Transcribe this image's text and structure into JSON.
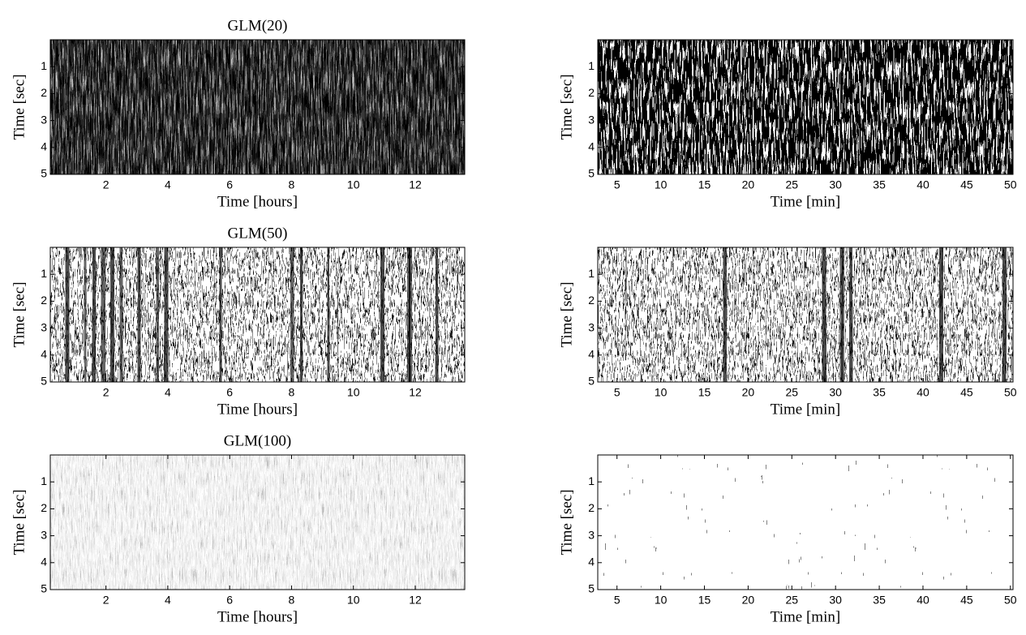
{
  "chart_data": [
    {
      "type": "raster",
      "title": "GLM(20)",
      "xlabel": "Time [hours]",
      "ylabel": "Time [sec]",
      "xlim": [
        0.2,
        13.6
      ],
      "xticks": [
        2,
        4,
        6,
        8,
        10,
        12
      ],
      "ylim": [
        0,
        5
      ],
      "yticks": [
        1,
        2,
        3,
        4,
        5
      ],
      "y_reversed": true
    },
    {
      "type": "raster",
      "xlabel": "Time [min]",
      "ylabel": "Time [sec]",
      "xlim": [
        2.8,
        50.3
      ],
      "xticks": [
        5,
        10,
        15,
        20,
        25,
        30,
        35,
        40,
        45,
        50
      ],
      "ylim": [
        0,
        5
      ],
      "yticks": [
        1,
        2,
        3,
        4,
        5
      ],
      "y_reversed": true
    },
    {
      "type": "raster",
      "title": "GLM(50)",
      "xlabel": "Time [hours]",
      "ylabel": "Time [sec]",
      "xlim": [
        0.2,
        13.6
      ],
      "xticks": [
        2,
        4,
        6,
        8,
        10,
        12
      ],
      "ylim": [
        0,
        5
      ],
      "yticks": [
        1,
        2,
        3,
        4,
        5
      ],
      "y_reversed": true
    },
    {
      "type": "raster",
      "xlabel": "Time [min]",
      "ylabel": "Time [sec]",
      "xlim": [
        2.8,
        50.3
      ],
      "xticks": [
        5,
        10,
        15,
        20,
        25,
        30,
        35,
        40,
        45,
        50
      ],
      "ylim": [
        0,
        5
      ],
      "yticks": [
        1,
        2,
        3,
        4,
        5
      ],
      "y_reversed": true
    },
    {
      "type": "raster",
      "title": "GLM(100)",
      "xlabel": "Time [hours]",
      "ylabel": "Time [sec]",
      "xlim": [
        0.2,
        13.6
      ],
      "xticks": [
        2,
        4,
        6,
        8,
        10,
        12
      ],
      "ylim": [
        0,
        5
      ],
      "yticks": [
        1,
        2,
        3,
        4,
        5
      ],
      "y_reversed": true
    },
    {
      "type": "raster",
      "xlabel": "Time [min]",
      "ylabel": "Time [sec]",
      "xlim": [
        2.8,
        50.3
      ],
      "xticks": [
        5,
        10,
        15,
        20,
        25,
        30,
        35,
        40,
        45,
        50
      ],
      "ylim": [
        0,
        5
      ],
      "yticks": [
        1,
        2,
        3,
        4,
        5
      ],
      "y_reversed": true
    }
  ]
}
